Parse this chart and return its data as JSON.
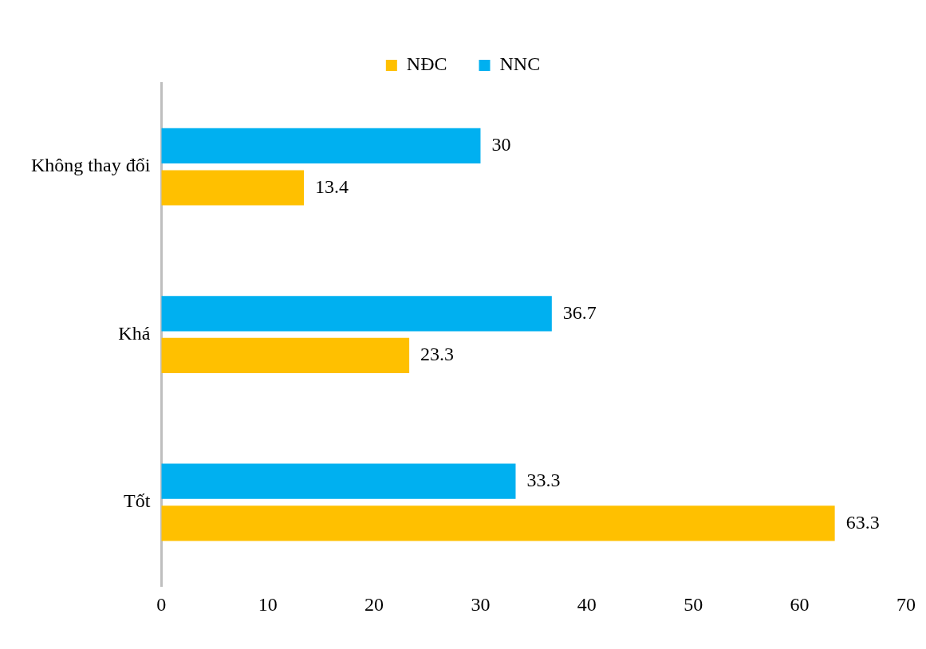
{
  "chart_data": {
    "type": "bar",
    "orientation": "horizontal",
    "categories": [
      "Không thay đổi",
      "Khá",
      "Tốt"
    ],
    "series": [
      {
        "name": "NĐC",
        "color": "#ffc000",
        "values": [
          13.4,
          23.3,
          63.3
        ]
      },
      {
        "name": "NNC",
        "color": "#00b0f0",
        "values": [
          30,
          36.7,
          33.3
        ]
      }
    ],
    "xlim": [
      0,
      70
    ],
    "xticks": [
      0,
      10,
      20,
      30,
      40,
      50,
      60,
      70
    ],
    "grid": false,
    "legend": "top",
    "data_labels": true
  }
}
